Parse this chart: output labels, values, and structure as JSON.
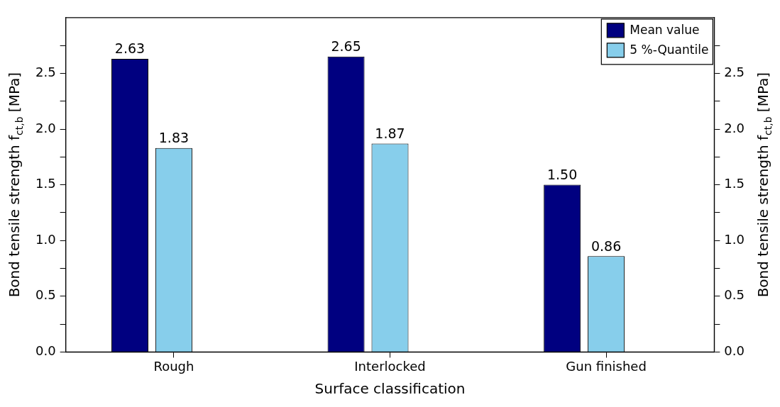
{
  "chart_data": {
    "type": "bar",
    "xlabel": "Surface classification",
    "ylabel": "Bond tensile strength f$_{ct,b}$ [MPa]",
    "y2label": "Bond tensile strength f$_{ct,b}$ [MPa]",
    "categories": [
      "Rough",
      "Interlocked",
      "Gun finished"
    ],
    "series": [
      {
        "name": "Mean value",
        "color": "#000080",
        "values": [
          2.63,
          2.65,
          1.5
        ],
        "value_labels": [
          "2.63",
          "2.65",
          "1.50"
        ]
      },
      {
        "name": "5 %-Quantile",
        "color": "#87ceeb",
        "values": [
          1.83,
          1.87,
          0.86
        ],
        "value_labels": [
          "1.83",
          "1.87",
          "0.86"
        ]
      }
    ],
    "ylim": [
      0,
      3
    ],
    "yticks": [
      {
        "value": 0,
        "label": "0.0"
      },
      {
        "value": 0.25,
        "label": null
      },
      0.5,
      {
        "value": 0.75,
        "label": null
      },
      {
        "value": 1,
        "label": "1.0"
      },
      {
        "value": 1.25,
        "label": null
      },
      1.5,
      {
        "value": 1.75,
        "label": null
      },
      {
        "value": 2,
        "label": "2.0"
      },
      {
        "value": 2.25,
        "label": null
      },
      2.5,
      {
        "value": 2.75,
        "label": null
      }
    ],
    "y2lim": [
      0,
      3
    ],
    "y2ticks": [
      {
        "value": 0,
        "label": "0.0"
      },
      {
        "value": 0.25,
        "label": null
      },
      0.5,
      {
        "value": 0.75,
        "label": null
      },
      {
        "value": 1,
        "label": "1.0"
      },
      {
        "value": 1.25,
        "label": null
      },
      1.5,
      {
        "value": 1.75,
        "label": null
      },
      {
        "value": 2,
        "label": "2.0"
      },
      {
        "value": 2.25,
        "label": null
      },
      2.5,
      {
        "value": 2.75,
        "label": null
      }
    ],
    "grid": false,
    "legend": "top right"
  }
}
